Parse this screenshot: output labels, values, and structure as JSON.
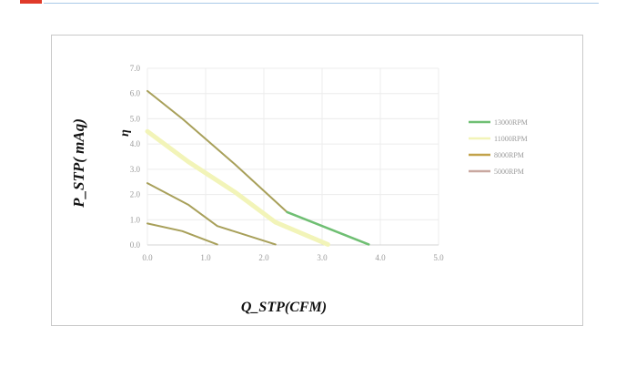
{
  "chart_data": {
    "type": "line",
    "title": "",
    "xlabel": "Q_STP(CFM)",
    "ylabel": "P_STP( mAq)",
    "secondary_label": "η",
    "xlim": [
      0,
      5
    ],
    "ylim": [
      0,
      7
    ],
    "x_ticks": [
      "0.0",
      "1.0",
      "2.0",
      "3.0",
      "4.0",
      "5.0"
    ],
    "y_ticks": [
      "0.0",
      "1.0",
      "2.0",
      "3.0",
      "4.0",
      "5.0",
      "6.0",
      "7.0"
    ],
    "grid": true,
    "legend_position": "right",
    "series": [
      {
        "name": "13000RPM",
        "color": "#6fbf73",
        "points": [
          [
            0,
            6.1
          ],
          [
            0.6,
            5.0
          ],
          [
            1.5,
            3.2
          ],
          [
            2.4,
            1.3
          ],
          [
            3.8,
            0.02
          ]
        ]
      },
      {
        "name": "11000RPM",
        "color": "#f2f4b8",
        "points": [
          [
            0,
            4.5
          ],
          [
            0.7,
            3.3
          ],
          [
            1.5,
            2.1
          ],
          [
            2.2,
            0.9
          ],
          [
            3.1,
            0.02
          ]
        ]
      },
      {
        "name": "8000RPM",
        "color": "#c2a24a",
        "points": [
          [
            0,
            2.45
          ],
          [
            0.7,
            1.6
          ],
          [
            1.2,
            0.75
          ],
          [
            2.2,
            0.02
          ]
        ]
      },
      {
        "name": "5000RPM",
        "color": "#c9a8a0",
        "points": [
          [
            0,
            0.85
          ],
          [
            0.6,
            0.55
          ],
          [
            1.2,
            0.02
          ]
        ]
      }
    ],
    "curve_color": "#a8a05a"
  }
}
